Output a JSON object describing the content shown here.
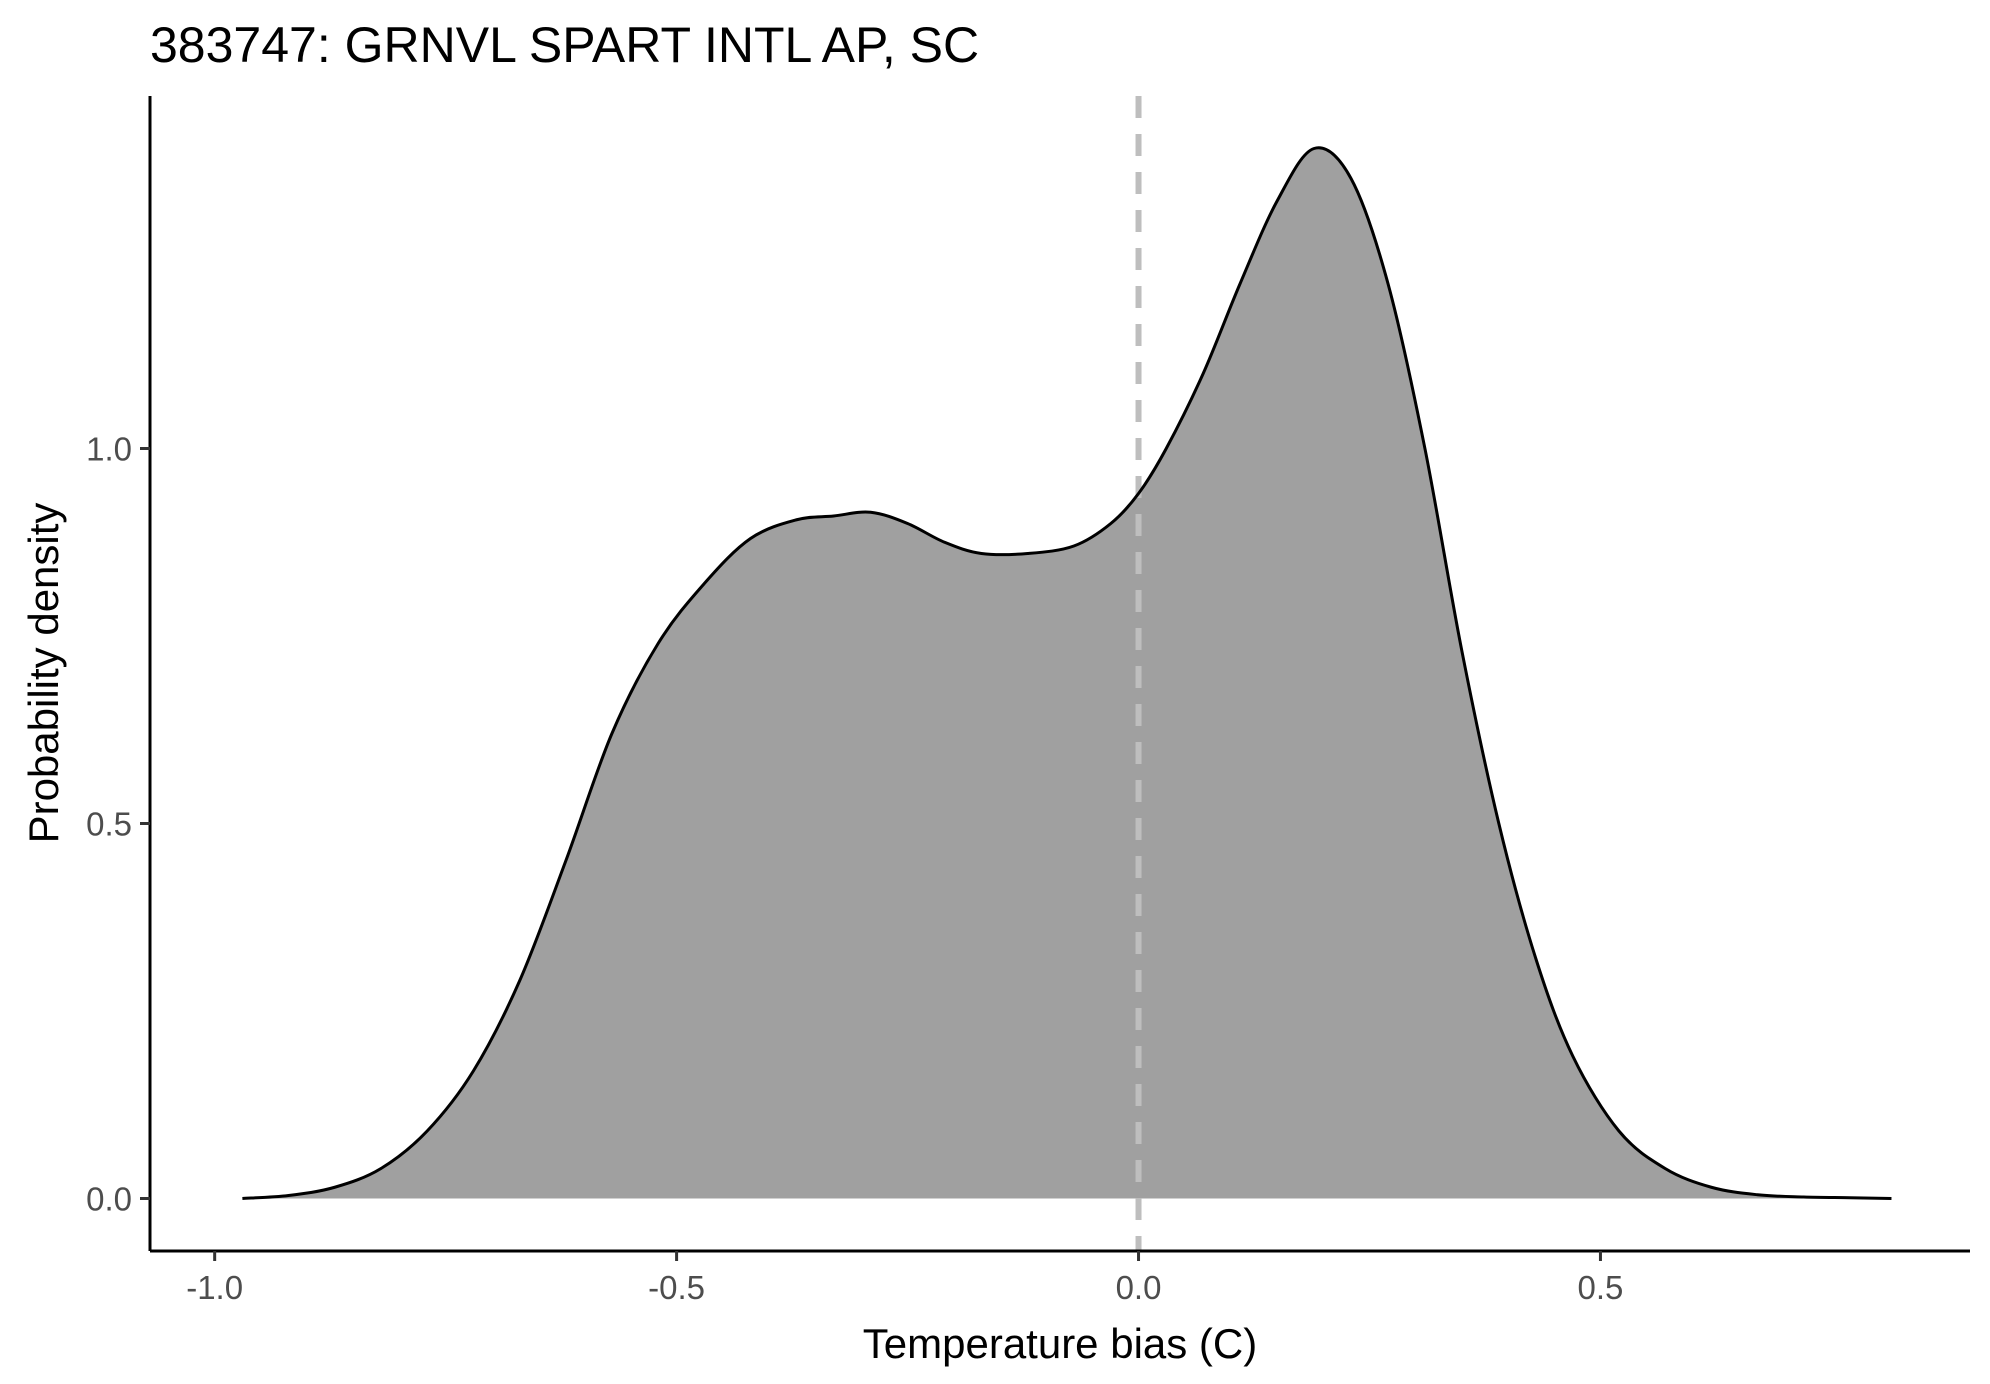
{
  "chart_data": {
    "type": "area",
    "title": "383747: GRNVL SPART INTL AP, SC",
    "xlabel": "Temperature bias (C)",
    "ylabel": "Probability density",
    "xlim": [
      -1.07,
      0.9
    ],
    "ylim": [
      -0.07,
      1.47
    ],
    "x_ticks": [
      -1.0,
      -0.5,
      0.0,
      0.5
    ],
    "x_tick_labels": [
      "-1.0",
      "-0.5",
      "0.0",
      "0.5"
    ],
    "y_ticks": [
      0.0,
      0.5,
      1.0
    ],
    "y_tick_labels": [
      "0.0",
      "0.5",
      "1.0"
    ],
    "reference_line": {
      "x": 0.0,
      "style": "dashed",
      "color": "#bebebe"
    },
    "fill_color": "#a0a0a0",
    "line_color": "#000000",
    "grid": false,
    "legend": "none",
    "series": [
      {
        "x": [
          -0.97,
          -0.92,
          -0.87,
          -0.82,
          -0.77,
          -0.72,
          -0.67,
          -0.62,
          -0.57,
          -0.52,
          -0.47,
          -0.42,
          -0.37,
          -0.33,
          -0.29,
          -0.25,
          -0.21,
          -0.17,
          -0.12,
          -0.07,
          -0.03,
          0.0,
          0.03,
          0.07,
          0.11,
          0.15,
          0.19,
          0.23,
          0.27,
          0.31,
          0.35,
          0.39,
          0.43,
          0.47,
          0.52,
          0.57,
          0.62,
          0.67,
          0.72,
          0.77,
          0.815
        ],
        "y": [
          0.0,
          0.004,
          0.015,
          0.04,
          0.09,
          0.17,
          0.29,
          0.45,
          0.62,
          0.74,
          0.82,
          0.88,
          0.905,
          0.91,
          0.915,
          0.9,
          0.875,
          0.86,
          0.86,
          0.87,
          0.9,
          0.94,
          1.0,
          1.1,
          1.22,
          1.33,
          1.4,
          1.36,
          1.22,
          1.0,
          0.73,
          0.5,
          0.32,
          0.19,
          0.09,
          0.04,
          0.015,
          0.005,
          0.002,
          0.001,
          0.0
        ]
      }
    ]
  }
}
